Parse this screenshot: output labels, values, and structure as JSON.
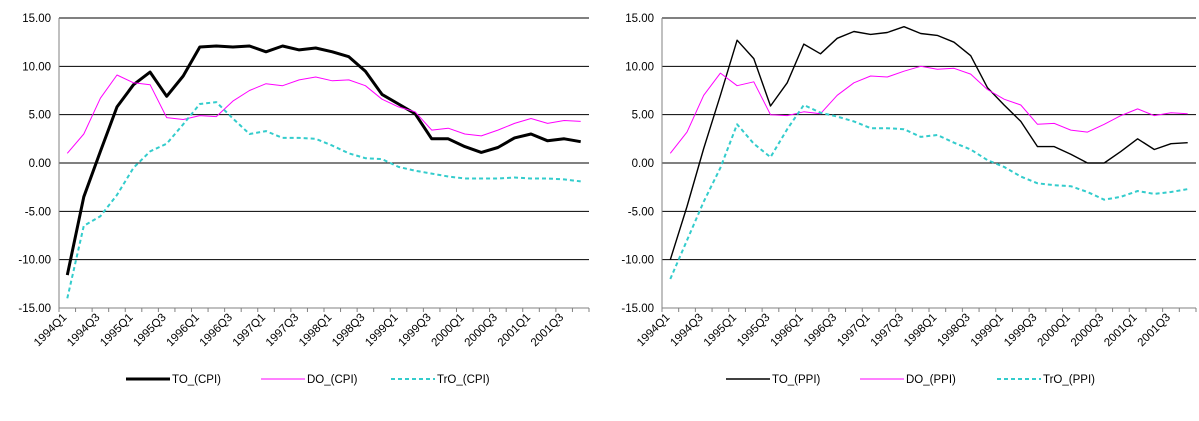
{
  "charts": [
    {
      "x_ticks": [
        "1994Q1",
        "1994Q3",
        "1995Q1",
        "1995Q3",
        "1996Q1",
        "1996Q3",
        "1997Q1",
        "1997Q3",
        "1998Q1",
        "1998Q3",
        "1999Q1",
        "1999Q3",
        "2000Q1",
        "2000Q3",
        "2001Q1",
        "2001Q3"
      ],
      "y_ticks": [
        "15.00",
        "10.00",
        "5.00",
        "0.00",
        "-5.00",
        "-10.00",
        "-15.00"
      ]
    },
    {
      "x_ticks": [
        "1994Q1",
        "1994Q3",
        "1995Q1",
        "1995Q3",
        "1996Q1",
        "1996Q3",
        "1997Q1",
        "1997Q3",
        "1998Q1",
        "1998Q3",
        "1999Q1",
        "1999Q3",
        "2000Q1",
        "2000Q3",
        "2001Q1",
        "2001Q3"
      ],
      "y_ticks": [
        "15.00",
        "10.00",
        "5.00",
        "0.00",
        "-5.00",
        "-10.00",
        "-15.00"
      ]
    }
  ],
  "chart_data": [
    {
      "type": "line",
      "x": [
        "1994Q1",
        "1994Q2",
        "1994Q3",
        "1994Q4",
        "1995Q1",
        "1995Q2",
        "1995Q3",
        "1995Q4",
        "1996Q1",
        "1996Q2",
        "1996Q3",
        "1996Q4",
        "1997Q1",
        "1997Q2",
        "1997Q3",
        "1997Q4",
        "1998Q1",
        "1998Q2",
        "1998Q3",
        "1998Q4",
        "1999Q1",
        "1999Q2",
        "1999Q3",
        "1999Q4",
        "2000Q1",
        "2000Q2",
        "2000Q3",
        "2000Q4",
        "2001Q1",
        "2001Q2",
        "2001Q3",
        "2001Q4"
      ],
      "series": [
        {
          "name": "TO_(CPI)",
          "color": "#000000",
          "style": "solid-thick",
          "values": [
            -11.6,
            -3.5,
            1.2,
            5.8,
            8.1,
            9.4,
            6.9,
            9.0,
            12.0,
            12.1,
            12.0,
            12.1,
            11.5,
            12.1,
            11.7,
            11.9,
            11.5,
            11.0,
            9.5,
            7.1,
            6.1,
            5.1,
            2.5,
            2.5,
            1.7,
            1.1,
            1.6,
            2.6,
            3.0,
            2.3,
            2.5,
            2.2
          ]
        },
        {
          "name": "DO_(CPI)",
          "color": "#ff00ff",
          "style": "solid-thin",
          "values": [
            1.0,
            3.0,
            6.7,
            9.1,
            8.3,
            8.1,
            4.7,
            4.5,
            4.9,
            4.8,
            6.4,
            7.5,
            8.2,
            8.0,
            8.6,
            8.9,
            8.5,
            8.6,
            8.0,
            6.6,
            5.8,
            5.3,
            3.4,
            3.6,
            3.0,
            2.8,
            3.4,
            4.1,
            4.6,
            4.1,
            4.4,
            4.3
          ]
        },
        {
          "name": "TrO_(CPI)",
          "color": "#33cccc",
          "style": "dashed",
          "values": [
            -14.0,
            -6.5,
            -5.5,
            -3.3,
            -0.5,
            1.2,
            2.0,
            4.0,
            6.1,
            6.3,
            4.6,
            3.0,
            3.3,
            2.6,
            2.6,
            2.5,
            1.8,
            1.0,
            0.5,
            0.4,
            -0.4,
            -0.8,
            -1.1,
            -1.4,
            -1.6,
            -1.6,
            -1.6,
            -1.5,
            -1.6,
            -1.6,
            -1.7,
            -1.9
          ]
        }
      ],
      "xlabel": "",
      "ylabel": "",
      "ylim": [
        -15,
        15
      ],
      "legend_position": "bottom",
      "grid": "horizontal"
    },
    {
      "type": "line",
      "x": [
        "1994Q1",
        "1994Q2",
        "1994Q3",
        "1994Q4",
        "1995Q1",
        "1995Q2",
        "1995Q3",
        "1995Q4",
        "1996Q1",
        "1996Q2",
        "1996Q3",
        "1996Q4",
        "1997Q1",
        "1997Q2",
        "1997Q3",
        "1997Q4",
        "1998Q1",
        "1998Q2",
        "1998Q3",
        "1998Q4",
        "1999Q1",
        "1999Q2",
        "1999Q3",
        "1999Q4",
        "2000Q1",
        "2000Q2",
        "2000Q3",
        "2000Q4",
        "2001Q1",
        "2001Q2",
        "2001Q3",
        "2001Q4"
      ],
      "series": [
        {
          "name": "TO_(PPI)",
          "color": "#000000",
          "style": "solid",
          "values": [
            -10.0,
            -4.5,
            1.5,
            7.0,
            12.7,
            10.8,
            5.9,
            8.3,
            12.3,
            11.3,
            12.9,
            13.6,
            13.3,
            13.5,
            14.1,
            13.4,
            13.2,
            12.5,
            11.1,
            7.8,
            6.0,
            4.3,
            1.7,
            1.7,
            0.9,
            0.0,
            0.0,
            1.2,
            2.5,
            1.4,
            2.0,
            2.1
          ]
        },
        {
          "name": "DO_(PPI)",
          "color": "#ff00ff",
          "style": "solid-thin",
          "values": [
            1.0,
            3.2,
            7.0,
            9.3,
            8.0,
            8.4,
            5.0,
            4.9,
            5.3,
            5.1,
            7.0,
            8.3,
            9.0,
            8.9,
            9.5,
            10.0,
            9.7,
            9.8,
            9.2,
            7.6,
            6.6,
            6.0,
            4.0,
            4.1,
            3.4,
            3.2,
            4.0,
            4.9,
            5.6,
            4.9,
            5.2,
            5.1
          ]
        },
        {
          "name": "TrO_(PPI)",
          "color": "#33cccc",
          "style": "dashed",
          "values": [
            -12.0,
            -8.0,
            -4.0,
            -0.5,
            4.0,
            2.0,
            0.6,
            3.5,
            6.0,
            5.2,
            4.8,
            4.3,
            3.6,
            3.6,
            3.5,
            2.7,
            2.9,
            2.1,
            1.4,
            0.3,
            -0.4,
            -1.4,
            -2.1,
            -2.3,
            -2.4,
            -3.0,
            -3.8,
            -3.5,
            -2.9,
            -3.2,
            -3.0,
            -2.7
          ]
        }
      ],
      "xlabel": "",
      "ylabel": "",
      "ylim": [
        -15,
        15
      ],
      "legend_position": "bottom",
      "grid": "horizontal"
    }
  ]
}
